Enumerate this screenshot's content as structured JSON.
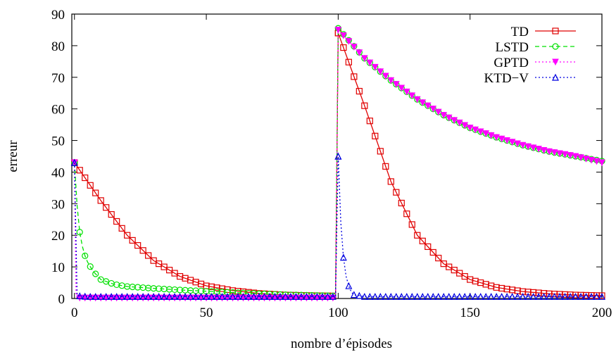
{
  "chart_data": {
    "type": "line",
    "title": "",
    "xlabel": "nombre d’épisodes",
    "ylabel": "erreur",
    "xlim": [
      -1,
      200
    ],
    "ylim": [
      0,
      90
    ],
    "xticks": [
      0,
      50,
      100,
      150,
      200
    ],
    "yticks": [
      0,
      10,
      20,
      30,
      40,
      50,
      60,
      70,
      80,
      90
    ],
    "grid": false,
    "legend_position": "top-right",
    "series": [
      {
        "name": "TD",
        "color": "#e00000",
        "marker": "square",
        "dash": "solid",
        "x": [
          0,
          10,
          20,
          30,
          40,
          50,
          60,
          70,
          80,
          90,
          99,
          100,
          110,
          120,
          130,
          140,
          150,
          160,
          170,
          180,
          190,
          200
        ],
        "y": [
          43,
          31,
          20,
          12,
          7,
          4,
          2.5,
          1.6,
          1.1,
          0.9,
          0.8,
          84,
          61,
          37,
          20,
          11,
          6,
          3.5,
          2.2,
          1.5,
          1.1,
          0.9
        ]
      },
      {
        "name": "LSTD",
        "color": "#00e000",
        "marker": "circle",
        "dash": "dashed",
        "x": [
          0,
          1,
          2,
          3,
          4,
          5,
          7,
          10,
          15,
          20,
          30,
          40,
          50,
          60,
          70,
          80,
          90,
          99,
          100,
          110,
          120,
          130,
          140,
          150,
          160,
          170,
          180,
          190,
          200
        ],
        "y": [
          43,
          29.5,
          21,
          16.5,
          13.5,
          11.5,
          8.7,
          6,
          4.5,
          3.8,
          3.2,
          2.7,
          2.3,
          1.9,
          1.5,
          1.2,
          1.0,
          0.8,
          85.5,
          76,
          69,
          63,
          58,
          54,
          51,
          48.5,
          46.5,
          45,
          43.5
        ]
      },
      {
        "name": "GPTD",
        "color": "#ff00ff",
        "marker": "triangle-down",
        "dash": "dotted",
        "x": [
          0,
          0.6,
          1,
          10,
          30,
          50,
          70,
          99,
          100,
          110,
          120,
          130,
          140,
          150,
          160,
          170,
          180,
          190,
          200
        ],
        "y": [
          43,
          1,
          0.2,
          0.2,
          0.2,
          0.2,
          0.2,
          0.2,
          85,
          76,
          69,
          63,
          58,
          54,
          51,
          48.5,
          46.5,
          45,
          43
        ]
      },
      {
        "name": "KTD−V",
        "color": "#0000e0",
        "marker": "triangle-up",
        "dash": "dotted",
        "x": [
          0,
          1,
          2,
          5,
          10,
          30,
          50,
          70,
          99,
          100,
          101,
          102,
          103,
          104,
          105,
          106,
          110,
          120,
          150,
          200
        ],
        "y": [
          43,
          1.5,
          0.8,
          0.6,
          0.6,
          0.6,
          0.6,
          0.6,
          0.6,
          45,
          24,
          13,
          7,
          4,
          2,
          1.2,
          0.6,
          0.6,
          0.6,
          0.6
        ]
      }
    ]
  }
}
